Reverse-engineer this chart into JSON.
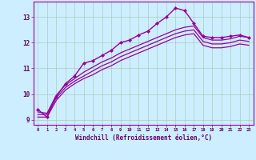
{
  "bg_color": "#cceeff",
  "line_color": "#990099",
  "grid_color": "#aaccbb",
  "xlabel": "Windchill (Refroidissement éolien,°C)",
  "xlabel_color": "#660066",
  "ylabel_color": "#660066",
  "xlim": [
    -0.5,
    23.5
  ],
  "ylim": [
    8.8,
    13.6
  ],
  "yticks": [
    9,
    10,
    11,
    12,
    13
  ],
  "xticks": [
    0,
    1,
    2,
    3,
    4,
    5,
    6,
    7,
    8,
    9,
    10,
    11,
    12,
    13,
    14,
    15,
    16,
    17,
    18,
    19,
    20,
    21,
    22,
    23
  ],
  "series": [
    {
      "x": [
        0,
        1,
        2,
        3,
        4,
        5,
        6,
        7,
        8,
        9,
        10,
        11,
        12,
        13,
        14,
        15,
        16,
        17,
        18,
        19,
        20,
        21,
        22,
        23
      ],
      "y": [
        9.4,
        9.1,
        9.9,
        10.4,
        10.7,
        11.2,
        11.3,
        11.5,
        11.7,
        12.0,
        12.1,
        12.3,
        12.45,
        12.75,
        13.0,
        13.35,
        13.25,
        12.75,
        12.25,
        12.2,
        12.2,
        12.25,
        12.3,
        12.2
      ],
      "marker": "D",
      "markersize": 2.0,
      "linewidth": 1.0
    },
    {
      "x": [
        0,
        1,
        2,
        3,
        4,
        5,
        6,
        7,
        8,
        9,
        10,
        11,
        12,
        13,
        14,
        15,
        16,
        17,
        18,
        19,
        20,
        21,
        22,
        23
      ],
      "y": [
        9.3,
        9.25,
        9.95,
        10.35,
        10.6,
        10.85,
        11.05,
        11.25,
        11.4,
        11.6,
        11.75,
        11.9,
        12.05,
        12.2,
        12.35,
        12.5,
        12.6,
        12.65,
        12.2,
        12.1,
        12.1,
        12.15,
        12.25,
        12.2
      ],
      "marker": null,
      "markersize": 0,
      "linewidth": 0.9
    },
    {
      "x": [
        0,
        1,
        2,
        3,
        4,
        5,
        6,
        7,
        8,
        9,
        10,
        11,
        12,
        13,
        14,
        15,
        16,
        17,
        18,
        19,
        20,
        21,
        22,
        23
      ],
      "y": [
        9.2,
        9.2,
        9.85,
        10.25,
        10.5,
        10.7,
        10.9,
        11.1,
        11.25,
        11.45,
        11.6,
        11.75,
        11.9,
        12.05,
        12.2,
        12.35,
        12.45,
        12.5,
        12.05,
        11.95,
        11.95,
        12.0,
        12.1,
        12.05
      ],
      "marker": null,
      "markersize": 0,
      "linewidth": 0.9
    },
    {
      "x": [
        0,
        1,
        2,
        3,
        4,
        5,
        6,
        7,
        8,
        9,
        10,
        11,
        12,
        13,
        14,
        15,
        16,
        17,
        18,
        19,
        20,
        21,
        22,
        23
      ],
      "y": [
        9.1,
        9.1,
        9.75,
        10.15,
        10.4,
        10.6,
        10.75,
        10.95,
        11.1,
        11.3,
        11.45,
        11.6,
        11.75,
        11.9,
        12.05,
        12.2,
        12.3,
        12.35,
        11.9,
        11.8,
        11.8,
        11.85,
        11.95,
        11.9
      ],
      "marker": null,
      "markersize": 0,
      "linewidth": 0.9
    }
  ]
}
